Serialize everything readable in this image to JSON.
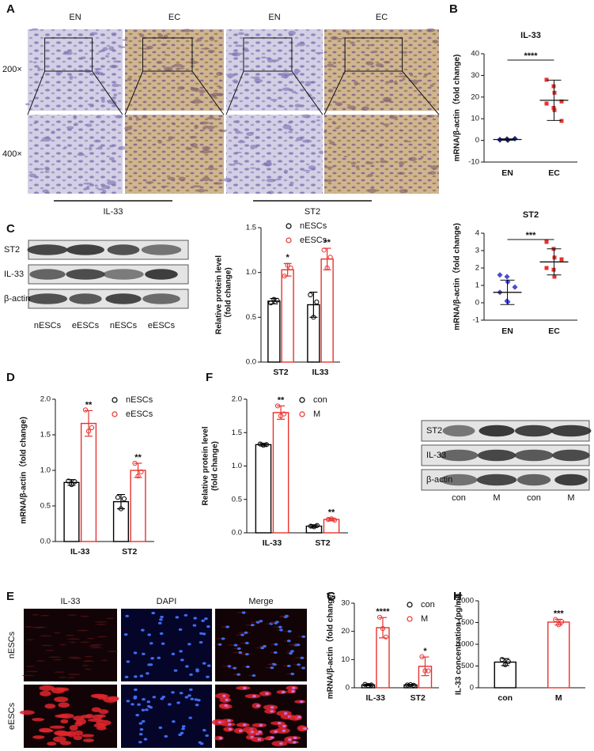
{
  "panels": {
    "A": {
      "letter": "A",
      "columns": [
        "EN",
        "EC",
        "EN",
        "EC"
      ],
      "rows": [
        "200×",
        "400×"
      ],
      "markers": [
        "IL-33",
        "ST2"
      ]
    },
    "B": {
      "letter": "B"
    },
    "C": {
      "letter": "C",
      "blot_rows": [
        "ST2",
        "IL-33",
        "β-actin"
      ],
      "lanes": [
        "nESCs",
        "eESCs",
        "nESCs",
        "eESCs"
      ]
    },
    "D": {
      "letter": "D"
    },
    "E": {
      "letter": "E",
      "columns": [
        "IL-33",
        "DAPI",
        "Merge"
      ],
      "rows": [
        "nESCs",
        "eESCs"
      ]
    },
    "F": {
      "letter": "F",
      "blot_rows": [
        "ST2",
        "IL-33",
        "β-actin"
      ],
      "lanes": [
        "con",
        "M",
        "con",
        "M"
      ]
    },
    "G": {
      "letter": "G"
    },
    "H": {
      "letter": "H"
    }
  },
  "chart_data": [
    {
      "type": "dotplot",
      "title": "IL-33",
      "ylabel": [
        "mRNA/β-actin（fold change)"
      ],
      "categories": [
        "EN",
        "EC"
      ],
      "colors": [
        "#1f2a8a",
        "#e8322e"
      ],
      "points": [
        [
          0.2,
          0.6,
          0.3,
          0.8,
          0.4,
          0.5,
          0.1
        ],
        [
          28,
          25,
          22,
          18,
          17,
          15,
          14,
          9
        ]
      ],
      "means": [
        0.4,
        18.5
      ],
      "sds": [
        0.3,
        9.3
      ],
      "significance": "****",
      "ylim": [
        -10,
        40
      ],
      "yticks": [
        -10,
        0,
        10,
        20,
        30,
        40
      ]
    },
    {
      "type": "dotplot",
      "title": "ST2",
      "ylabel": [
        "mRNA/β-actin（fold change)"
      ],
      "categories": [
        "EN",
        "EC"
      ],
      "colors": [
        "#4a4ad8",
        "#e8322e"
      ],
      "points": [
        [
          1.6,
          1.5,
          1.2,
          0.9,
          0.6,
          0.1,
          0.05
        ],
        [
          3.5,
          3.1,
          2.6,
          2.5,
          2.0,
          1.9,
          1.5
        ]
      ],
      "means": [
        0.6,
        2.35
      ],
      "sds": [
        0.7,
        0.75
      ],
      "significance": "***",
      "ylim": [
        -1,
        4
      ],
      "yticks": [
        -1,
        0,
        1,
        2,
        3,
        4
      ]
    },
    {
      "type": "bar",
      "ylabel": [
        "Relative protein level",
        "（fold change)"
      ],
      "categories": [
        "ST2",
        "IL33"
      ],
      "series": [
        {
          "name": "nESCs",
          "color": "#000000",
          "values": [
            0.68,
            0.64
          ],
          "errors": [
            0.03,
            0.14
          ],
          "points": [
            [
              0.66,
              0.7,
              0.69
            ],
            [
              0.75,
              0.5,
              0.67
            ]
          ]
        },
        {
          "name": "eESCs",
          "color": "#e8322e",
          "values": [
            1.03,
            1.15
          ],
          "errors": [
            0.07,
            0.12
          ],
          "points": [
            [
              0.96,
              1.08,
              1.05
            ],
            [
              1.25,
              1.05,
              1.17
            ]
          ],
          "labels": [
            "*",
            "**"
          ]
        }
      ],
      "ylim": [
        0,
        1.5
      ],
      "yticks": [
        {
          "value": 0,
          "label": "0.0"
        },
        {
          "value": 0.5,
          "label": "0.5"
        },
        {
          "value": 1,
          "label": "1.0"
        },
        {
          "value": 1.5,
          "label": "1.5"
        }
      ]
    },
    {
      "type": "bar",
      "ylabel": [
        "mRNA/β-actin（fold change)"
      ],
      "categories": [
        "IL-33",
        "ST2"
      ],
      "series": [
        {
          "name": "nESCs",
          "color": "#000000",
          "values": [
            0.83,
            0.56
          ],
          "errors": [
            0.04,
            0.1
          ],
          "points": [
            [
              0.85,
              0.8,
              0.84
            ],
            [
              0.62,
              0.46,
              0.6
            ]
          ]
        },
        {
          "name": "eESCs",
          "color": "#e8322e",
          "values": [
            1.66,
            1.0
          ],
          "errors": [
            0.18,
            0.1
          ],
          "points": [
            [
              1.85,
              1.55,
              1.6
            ],
            [
              1.1,
              0.92,
              0.98
            ]
          ],
          "labels": [
            "**",
            "**"
          ]
        }
      ],
      "ylim": [
        0,
        2
      ],
      "yticks": [
        {
          "value": 0,
          "label": "0.0"
        },
        {
          "value": 0.5,
          "label": "0.5"
        },
        {
          "value": 1,
          "label": "1.0"
        },
        {
          "value": 1.5,
          "label": "1.5"
        },
        {
          "value": 2,
          "label": "2.0"
        }
      ]
    },
    {
      "type": "bar",
      "ylabel": [
        "Relative protein level",
        "(fold change)"
      ],
      "categories": [
        "IL-33",
        "ST2"
      ],
      "series": [
        {
          "name": "con",
          "color": "#000000",
          "values": [
            1.32,
            0.1
          ],
          "errors": [
            0.02,
            0.02
          ],
          "points": [
            [
              1.33,
              1.31,
              1.32
            ],
            [
              0.1,
              0.09,
              0.11
            ]
          ]
        },
        {
          "name": "M",
          "color": "#e8322e",
          "values": [
            1.8,
            0.2
          ],
          "errors": [
            0.1,
            0.02
          ],
          "points": [
            [
              1.9,
              1.75,
              1.78
            ],
            [
              0.2,
              0.21,
              0.19
            ]
          ],
          "labels": [
            "**",
            "**"
          ]
        }
      ],
      "ylim": [
        0,
        2
      ],
      "yticks": [
        {
          "value": 0,
          "label": "0.0"
        },
        {
          "value": 0.5,
          "label": "0.5"
        },
        {
          "value": 1,
          "label": "1.0"
        },
        {
          "value": 1.5,
          "label": "1.5"
        },
        {
          "value": 2,
          "label": "2.0"
        }
      ]
    },
    {
      "type": "bar",
      "ylabel": [
        "mRNA/β-actin（fold change)"
      ],
      "categories": [
        "IL-33",
        "ST2"
      ],
      "series": [
        {
          "name": "con",
          "color": "#000000",
          "values": [
            1,
            1
          ],
          "errors": [
            0.3,
            0.2
          ],
          "points": [
            [
              1.2,
              0.8,
              1.0
            ],
            [
              1.0,
              1.1,
              0.9
            ]
          ]
        },
        {
          "name": "M",
          "color": "#e8322e",
          "values": [
            21.3,
            7.6
          ],
          "errors": [
            3.6,
            3.3
          ],
          "points": [
            [
              25,
              21,
              18
            ],
            [
              11,
              6,
              6
            ]
          ],
          "labels": [
            "****",
            "*"
          ]
        }
      ],
      "ylim": [
        0,
        30
      ],
      "yticks": [
        0,
        10,
        20,
        30
      ]
    },
    {
      "type": "bar",
      "ylabel": [
        "IL-33 concentration (pg/ml)"
      ],
      "categories": [
        "con",
        "M"
      ],
      "series": [
        {
          "colors": [
            "#000000",
            "#e8322e"
          ],
          "values": [
            590,
            1510
          ],
          "errors": [
            80,
            65
          ],
          "points": [
            [
              650,
              530,
              600
            ],
            [
              1570,
              1450,
              1520
            ]
          ],
          "labels": [
            null,
            "***"
          ]
        }
      ],
      "ylim": [
        0,
        2000
      ],
      "yticks": [
        0,
        500,
        1000,
        1500,
        2000
      ]
    }
  ]
}
